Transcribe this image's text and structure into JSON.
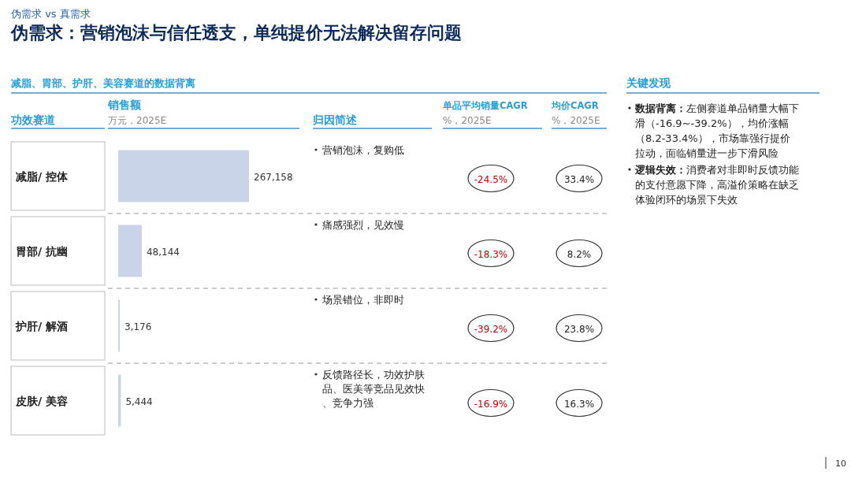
{
  "chart_data": [
    {
      "type": "bar",
      "orientation": "horizontal",
      "subtitle": "伪需求 vs 真需求",
      "title": "伪需求：营销泡沫与信任透支，单纯提价无法解决留存问题",
      "ylabel": "功效赛道",
      "xlabel": "销售额",
      "categories": [
        "减脂/ 控体",
        "胃部/ 抗幽",
        "护肝/ 解酒",
        "皮肤/ 美容"
      ],
      "values": [
        267158,
        48144,
        3176,
        5444
      ],
      "value_labels": [
        "267,158",
        "48,144",
        "3,176",
        "5,444"
      ],
      "color": "#c9d4e8",
      "annotations": [
        "减脂、胃部、护肝、美容赛道的数据背离",
        "万元，2025E",
        "归因简述",
        "营销泡沫，复购低",
        "痛感强烈，见效慢",
        "场景错位，非即时",
        "反馈路径长，功效护肤品、医美等竞品见效快、竞争力强",
        "10"
      ]
    },
    {
      "type": "other",
      "title": "单品平均销量CAGR",
      "subtitle": "%，2025E",
      "values": [
        -24.5,
        -18.3,
        -39.2,
        -16.9
      ],
      "value_labels": [
        "-24.5%",
        "-18.3%",
        "-39.2%",
        "-16.9%"
      ],
      "color": "#c00000"
    },
    {
      "type": "other",
      "title": "均价CAGR",
      "subtitle": "%，2025E",
      "values": [
        33.4,
        8.2,
        23.8,
        16.3
      ],
      "value_labels": [
        "33.4%",
        "8.2%",
        "23.8%",
        "16.3%"
      ],
      "color": "#222222"
    },
    {
      "type": "other",
      "title": "关键发现",
      "annotations": [
        "数据背离：左侧赛道单品销量大幅下滑（-16.9~-39.2%），均价涨幅（8.2-33.4%），市场靠强行提价拉动，面临销量进一步下滑风险",
        "逻辑失效：消费者对非即时反馈功能的支付意愿下降，高溢价策略在缺乏体验闭环的场景下失效"
      ]
    }
  ]
}
